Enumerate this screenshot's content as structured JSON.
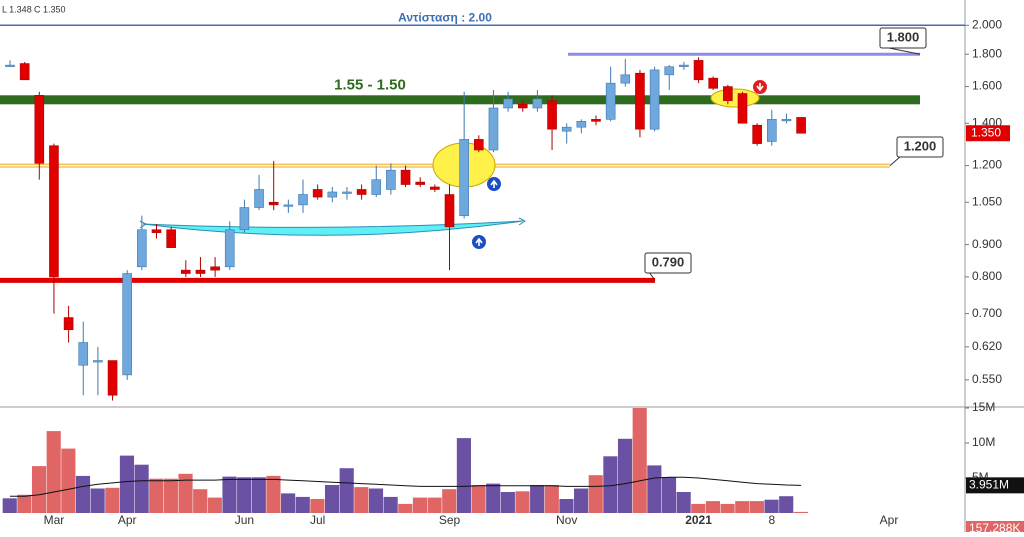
{
  "chart_data": {
    "type": "candlestick",
    "legend_text": [
      "L 1.348",
      "C 1.350"
    ],
    "categories": [
      null,
      null,
      null,
      "Mar",
      null,
      null,
      null,
      null,
      "Apr",
      null,
      null,
      null,
      null,
      null,
      null,
      null,
      "Jun",
      null,
      null,
      null,
      null,
      "Jul",
      null,
      null,
      null,
      null,
      null,
      null,
      null,
      null,
      "Sep",
      null,
      null,
      null,
      null,
      null,
      null,
      null,
      "Nov",
      null,
      null,
      null,
      null,
      null,
      null,
      null,
      null,
      "2021",
      null,
      null,
      null,
      null,
      "8",
      null,
      null,
      null,
      null,
      null,
      null,
      null,
      "Apr",
      null,
      null,
      null,
      null,
      null
    ],
    "open": [
      1.73,
      1.74,
      1.55,
      1.29,
      0.69,
      0.58,
      0.59,
      0.59,
      0.56,
      0.83,
      0.95,
      0.95,
      0.82,
      0.82,
      0.83,
      0.83,
      0.95,
      1.03,
      1.05,
      1.04,
      1.04,
      1.1,
      1.07,
      1.09,
      1.1,
      1.08,
      1.1,
      1.18,
      1.13,
      1.11,
      1.08,
      1.0,
      1.32,
      1.27,
      1.48,
      1.5,
      1.48,
      1.52,
      1.36,
      1.38,
      1.42,
      1.42,
      1.62,
      1.68,
      1.37,
      1.67,
      1.73,
      1.76,
      1.65,
      1.6,
      1.56,
      1.39,
      1.31,
      1.42,
      1.43,
      null,
      null,
      null,
      null,
      null,
      null,
      null,
      null,
      null,
      null,
      null
    ],
    "high": [
      1.76,
      1.75,
      1.57,
      1.3,
      0.72,
      0.68,
      0.62,
      0.59,
      0.82,
      1.0,
      0.97,
      0.96,
      0.85,
      0.86,
      0.86,
      0.98,
      1.06,
      1.16,
      1.22,
      1.06,
      1.14,
      1.12,
      1.11,
      1.11,
      1.12,
      1.2,
      1.21,
      1.2,
      1.15,
      1.12,
      1.12,
      1.57,
      1.34,
      1.58,
      1.57,
      1.52,
      1.58,
      1.55,
      1.4,
      1.42,
      1.44,
      1.72,
      1.77,
      1.7,
      1.72,
      1.73,
      1.75,
      1.78,
      1.66,
      1.61,
      1.57,
      1.4,
      1.47,
      1.45,
      1.43,
      null,
      null,
      null,
      null,
      null,
      null,
      null,
      null,
      null,
      null,
      null
    ],
    "low": [
      1.72,
      1.64,
      1.14,
      0.7,
      0.63,
      0.52,
      0.52,
      0.51,
      0.55,
      0.82,
      0.92,
      0.89,
      0.8,
      0.8,
      0.8,
      0.82,
      0.94,
      1.02,
      1.02,
      1.01,
      1.01,
      1.06,
      1.05,
      1.06,
      1.06,
      1.07,
      1.08,
      1.11,
      1.11,
      1.09,
      0.82,
      0.99,
      1.26,
      1.26,
      1.46,
      1.46,
      1.46,
      1.27,
      1.3,
      1.35,
      1.39,
      1.41,
      1.6,
      1.33,
      1.36,
      1.58,
      1.7,
      1.62,
      1.58,
      1.5,
      1.4,
      1.29,
      1.29,
      1.4,
      1.348,
      null,
      null,
      null,
      null,
      null,
      null,
      null,
      null,
      null,
      null,
      null
    ],
    "close": [
      1.73,
      1.64,
      1.21,
      0.8,
      0.66,
      0.63,
      0.59,
      0.52,
      0.81,
      0.95,
      0.94,
      0.89,
      0.81,
      0.81,
      0.82,
      0.95,
      1.03,
      1.1,
      1.04,
      1.04,
      1.08,
      1.07,
      1.09,
      1.09,
      1.08,
      1.14,
      1.18,
      1.12,
      1.12,
      1.1,
      0.96,
      1.32,
      1.27,
      1.48,
      1.53,
      1.48,
      1.53,
      1.37,
      1.38,
      1.41,
      1.41,
      1.62,
      1.67,
      1.37,
      1.7,
      1.72,
      1.73,
      1.64,
      1.59,
      1.52,
      1.4,
      1.3,
      1.42,
      1.42,
      1.35,
      null,
      null,
      null,
      null,
      null,
      null,
      null,
      null,
      null,
      null,
      null
    ],
    "up_color": "#6fa8dc",
    "down_color": "#e00000",
    "log_scale": true,
    "grid": false,
    "ylim": [
      0.5,
      2.13
    ],
    "yticks": [
      {
        "value": 0.55,
        "label": "0.550"
      },
      {
        "value": 0.62,
        "label": "0.620"
      },
      {
        "value": 0.7,
        "label": "0.700"
      },
      {
        "value": 0.8,
        "label": "0.800"
      },
      {
        "value": 0.9,
        "label": "0.900"
      },
      {
        "value": 1.05,
        "label": "1.050"
      },
      {
        "value": 1.2,
        "label": "1.200"
      },
      {
        "value": 1.4,
        "label": "1.400"
      },
      {
        "value": 1.6,
        "label": "1.600"
      },
      {
        "value": 1.8,
        "label": "1.800"
      },
      {
        "value": 2,
        "label": "2.000"
      }
    ],
    "last_price": {
      "value": 1.35,
      "label": "1.350"
    },
    "resistance": {
      "value": 2.0,
      "label": "Αντίσταση : 2.00",
      "color": "#3d6fb5"
    },
    "zone": {
      "range": [
        1.5,
        1.55
      ],
      "label": "1.55 - 1.50",
      "color": "#2e6b1f"
    },
    "levels": [
      {
        "value": 1.8,
        "label": "1.800",
        "color": "#8a8fe6"
      },
      {
        "value": 1.2,
        "label": "1.200",
        "color": "#f2b84b"
      },
      {
        "value": 0.79,
        "label": "0.790",
        "color": "#e00000"
      }
    ],
    "volume": {
      "values": [
        2.1,
        2.6,
        6.7,
        11.7,
        9.2,
        5.3,
        3.5,
        3.6,
        8.2,
        6.9,
        4.9,
        4.9,
        5.6,
        3.4,
        2.2,
        5.2,
        5.1,
        5.1,
        5.3,
        2.8,
        2.3,
        2.0,
        4.0,
        6.4,
        3.7,
        3.5,
        2.3,
        1.3,
        2.2,
        2.2,
        3.4,
        10.7,
        4.0,
        4.2,
        3.0,
        3.1,
        4.0,
        4.0,
        2.0,
        3.5,
        5.4,
        8.1,
        10.6,
        15,
        6.8,
        5.1,
        3.0,
        1.3,
        1.7,
        1.3,
        1.7,
        1.7,
        1.9,
        2.4,
        0.157288,
        null,
        null,
        null,
        null,
        null,
        null,
        null,
        null,
        null,
        null,
        null
      ],
      "up_color": "#6a51a3",
      "down_color": "#e06666",
      "ylim": [
        0,
        15
      ],
      "yticks": [
        {
          "value": 5,
          "label": "5M"
        },
        {
          "value": 10,
          "label": "10M"
        },
        {
          "value": 15,
          "label": "15M"
        }
      ],
      "last_label": {
        "value": 0.157288,
        "label": "157.288K"
      },
      "ma": {
        "values": [
          2.4,
          2.4,
          2.6,
          3.0,
          3.4,
          3.8,
          4.1,
          4.3,
          4.5,
          4.6,
          4.6,
          4.6,
          4.7,
          4.7,
          4.7,
          4.8,
          4.8,
          4.8,
          4.8,
          4.7,
          4.6,
          4.5,
          4.4,
          4.3,
          4.2,
          4.1,
          4.0,
          3.9,
          3.8,
          3.8,
          3.8,
          3.8,
          3.9,
          3.9,
          3.9,
          3.9,
          3.9,
          3.9,
          3.8,
          3.8,
          3.8,
          3.9,
          4.2,
          4.6,
          5.0,
          5.1,
          5.1,
          5.0,
          4.8,
          4.6,
          4.4,
          4.2,
          4.1,
          4.0,
          3.951,
          null,
          null,
          null,
          null,
          null,
          null,
          null,
          null,
          null,
          null,
          null
        ],
        "color": "#111111",
        "last_label": {
          "value": 3.951,
          "label": "3.951M"
        }
      }
    }
  }
}
